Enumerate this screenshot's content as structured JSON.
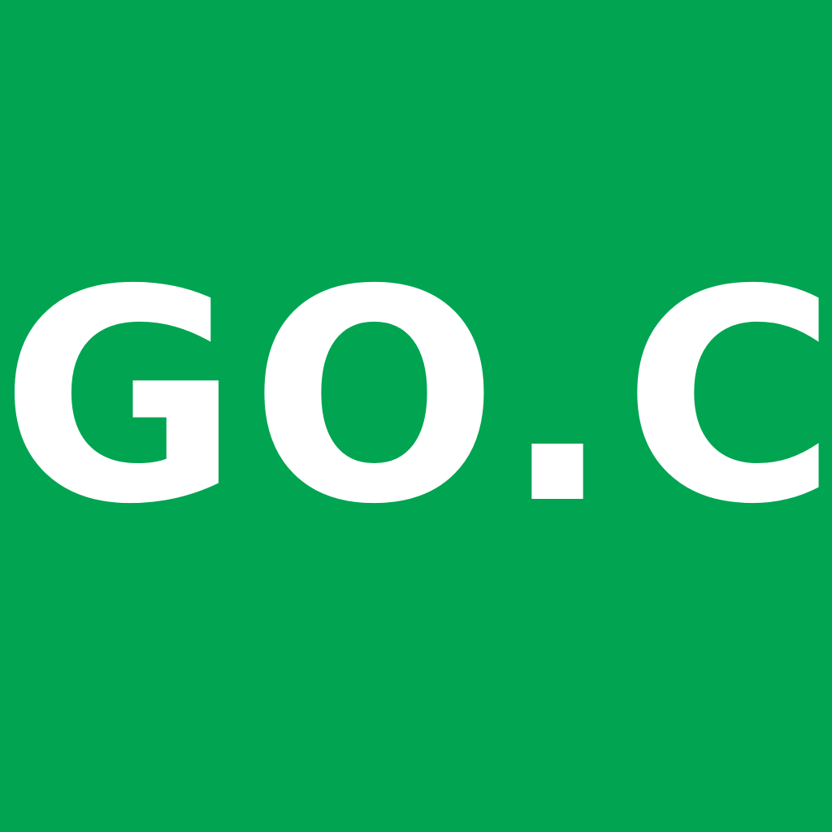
{
  "tile": {
    "text": "GO.C",
    "background_color": "#00A451",
    "text_color": "#FFFFFF"
  }
}
